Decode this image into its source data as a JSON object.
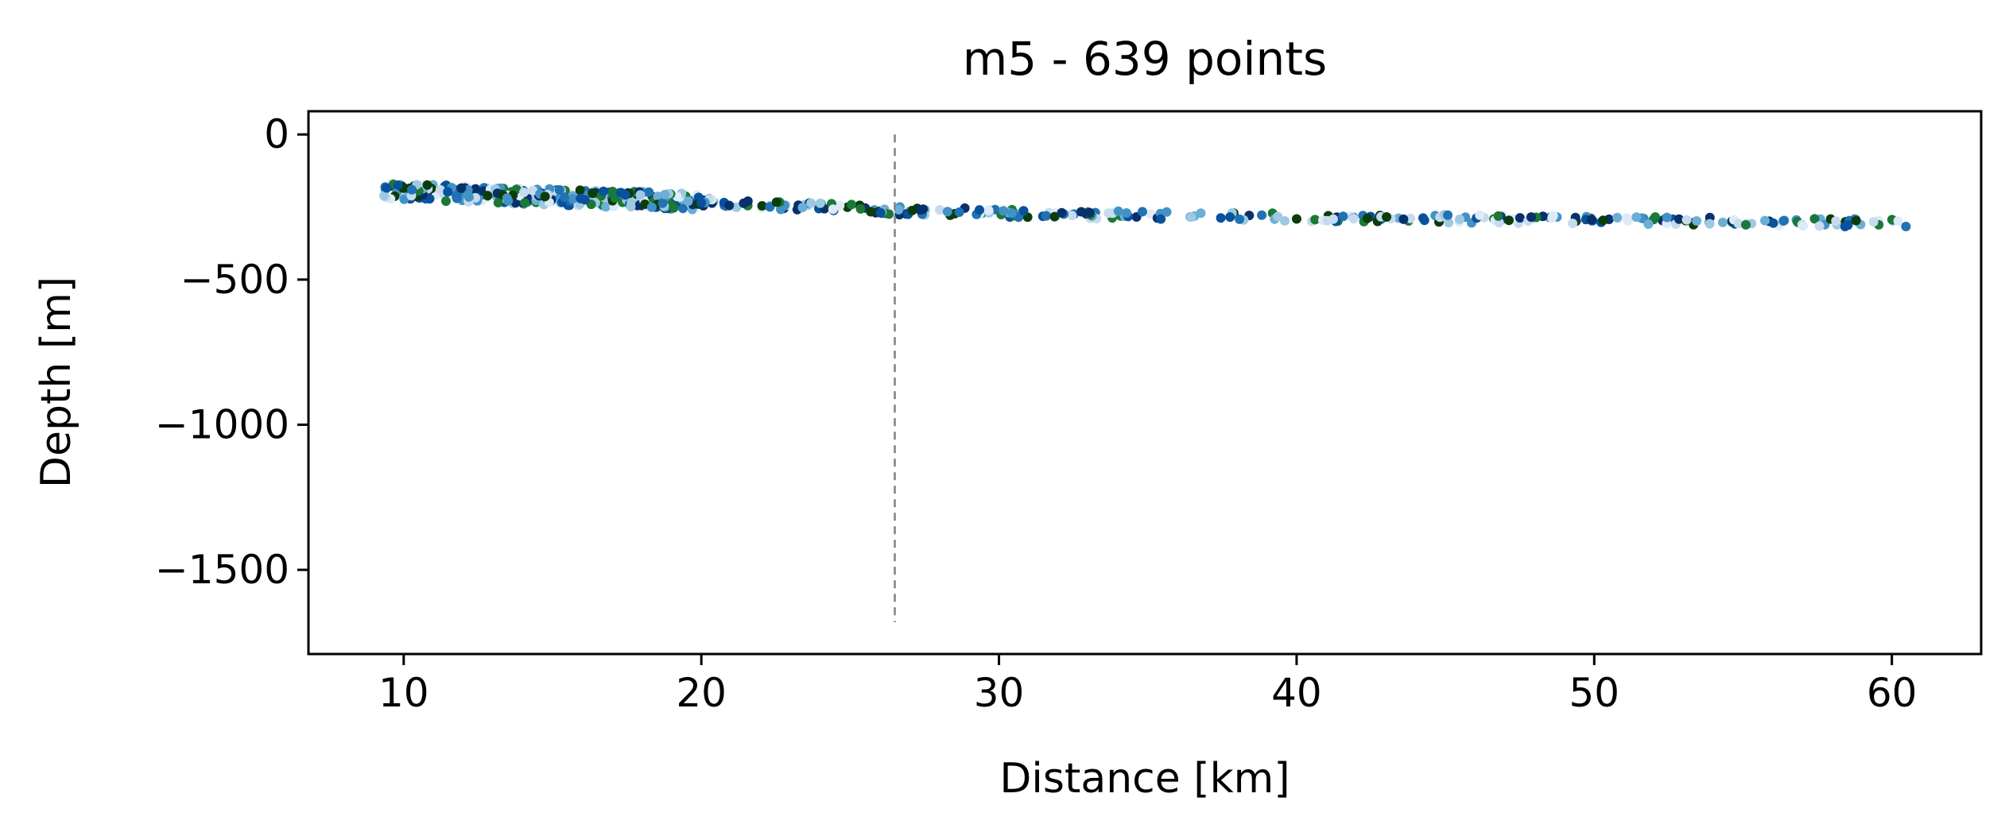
{
  "chart_data": {
    "type": "scatter",
    "title": "m5 - 639 points",
    "xlabel": "Distance [km]",
    "ylabel": "Depth [m]",
    "xlim": [
      6.8,
      63.0
    ],
    "ylim": [
      -1790,
      80
    ],
    "xticks": [
      10,
      20,
      30,
      40,
      50,
      60
    ],
    "xtick_labels": [
      "10",
      "20",
      "30",
      "40",
      "50",
      "60"
    ],
    "yticks": [
      0,
      -500,
      -1000,
      -1500
    ],
    "ytick_labels": [
      "0",
      "−500",
      "−1000",
      "−1500"
    ],
    "grid": false,
    "legend": "none",
    "point_count": 639,
    "trend": {
      "x": [
        9.3,
        12,
        15,
        18,
        21,
        24,
        26.5,
        30,
        35,
        40,
        45,
        50,
        55,
        60.5
      ],
      "y": [
        -195,
        -205,
        -215,
        -225,
        -238,
        -250,
        -262,
        -270,
        -280,
        -285,
        -290,
        -295,
        -300,
        -305
      ]
    },
    "vertical_line": {
      "x": 26.5,
      "y_range": [
        -1680,
        0
      ],
      "style": "dashed",
      "color": "#808080"
    },
    "palette": [
      "#08306b",
      "#08519c",
      "#2171b5",
      "#4292c6",
      "#6baed6",
      "#9ecae1",
      "#c6dbef",
      "#deebf7",
      "#1b7837",
      "#0b3d0b"
    ]
  }
}
